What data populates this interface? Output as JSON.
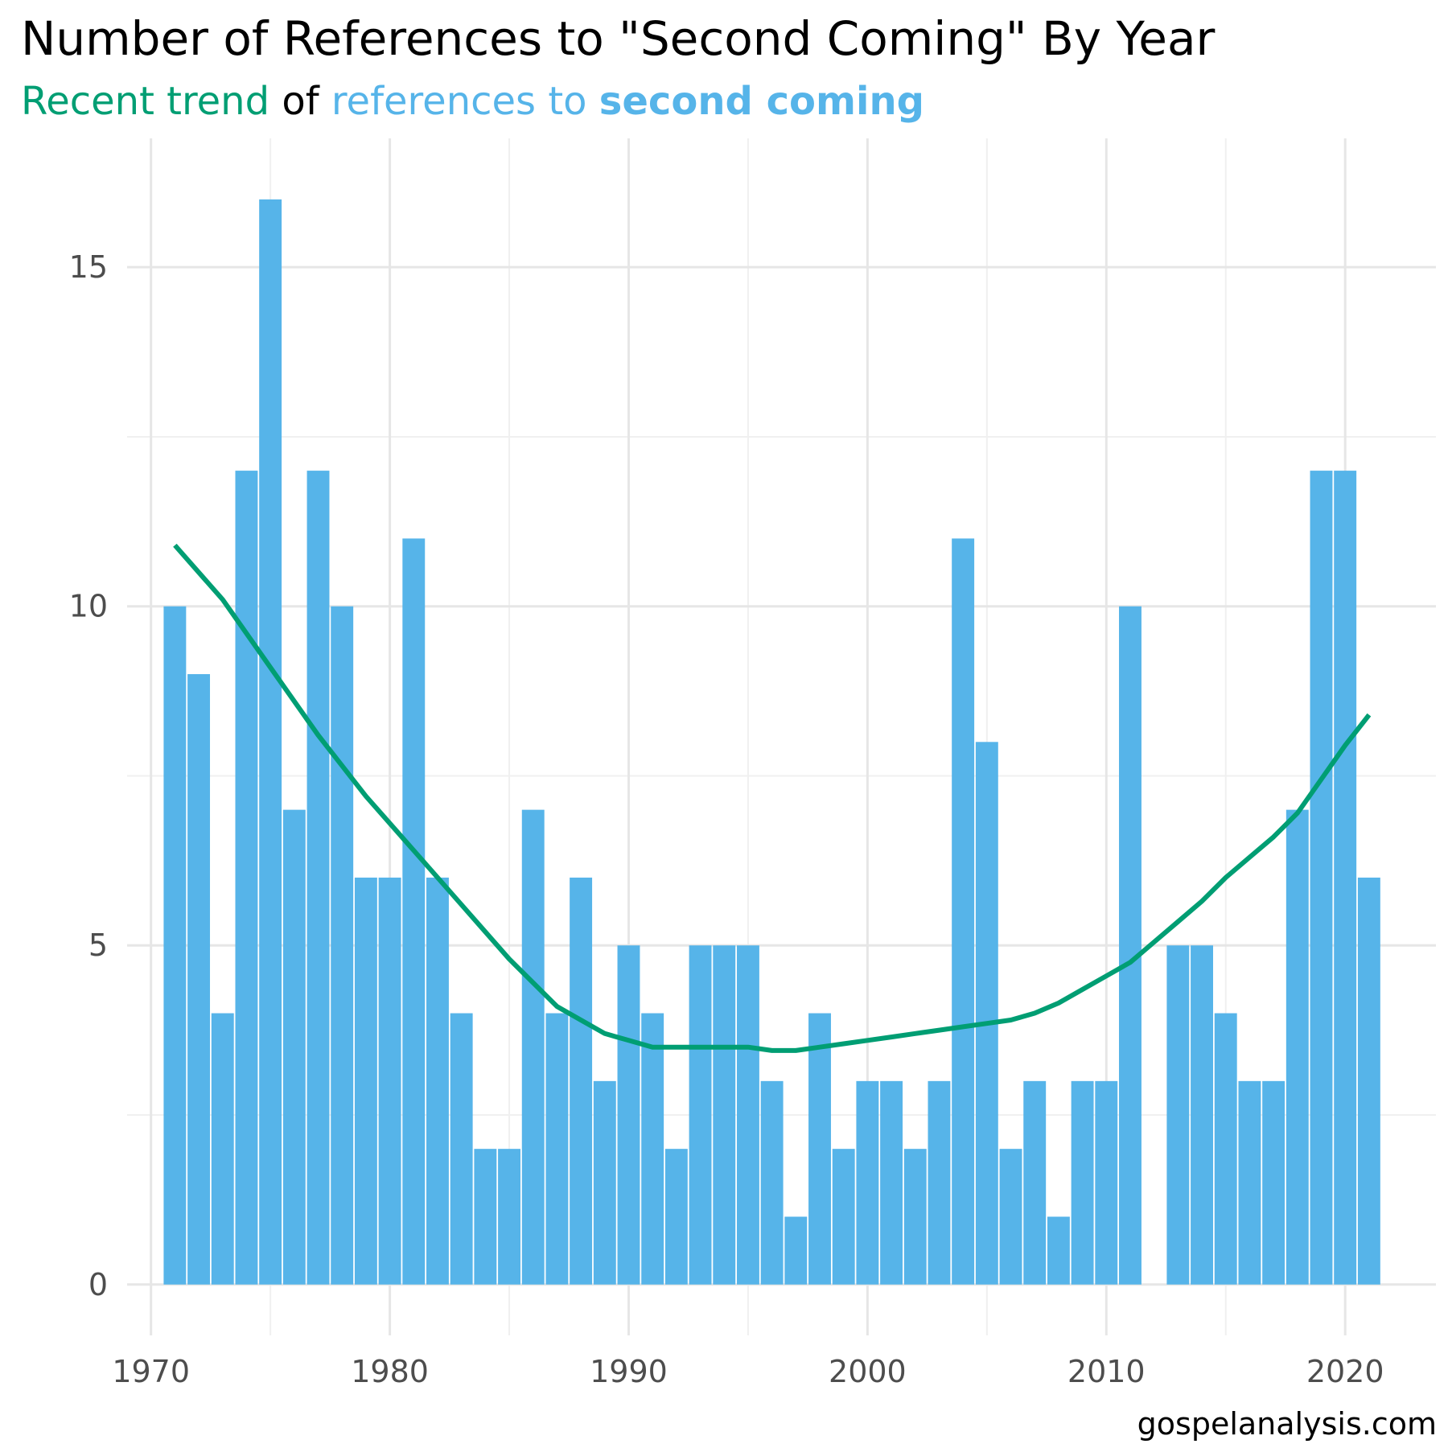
{
  "colors": {
    "bar": "#56B4E9",
    "trend": "#009E73",
    "grid_major": "#e6e6e6",
    "grid_minor": "#f0f0f0",
    "text": "#000000",
    "tick_text": "#4d4d4d"
  },
  "title": "Number of References to \"Second Coming\" By Year",
  "subtitle": {
    "part1": "Recent trend",
    "part2": " of ",
    "part3": "references to ",
    "part4": "second coming"
  },
  "caption": "gospelanalysis.com",
  "chart_data": {
    "type": "bar",
    "title": "Number of References to \"Second Coming\" By Year",
    "xlabel": "",
    "ylabel": "",
    "xlim": [
      1969,
      2023.8
    ],
    "ylim": [
      -0.75,
      16.9
    ],
    "x_ticks": [
      1970,
      1980,
      1990,
      2000,
      2010,
      2020
    ],
    "y_ticks": [
      0,
      5,
      10,
      15
    ],
    "grid": true,
    "legend": "none",
    "series": [
      {
        "type": "bar",
        "x": [
          1971,
          1972,
          1973,
          1974,
          1975,
          1976,
          1977,
          1978,
          1979,
          1980,
          1981,
          1982,
          1983,
          1984,
          1985,
          1986,
          1987,
          1988,
          1989,
          1990,
          1991,
          1992,
          1993,
          1994,
          1995,
          1996,
          1997,
          1998,
          1999,
          2000,
          2001,
          2002,
          2003,
          2004,
          2005,
          2006,
          2007,
          2008,
          2009,
          2010,
          2011,
          2012,
          2013,
          2014,
          2015,
          2016,
          2017,
          2018,
          2019,
          2020,
          2021
        ],
        "values": [
          10,
          9,
          4,
          12,
          16,
          7,
          12,
          10,
          6,
          6,
          11,
          6,
          4,
          2,
          2,
          7,
          4,
          6,
          3,
          5,
          4,
          2,
          5,
          5,
          5,
          3,
          1,
          4,
          2,
          3,
          3,
          2,
          3,
          11,
          8,
          2,
          3,
          1,
          3,
          3,
          10,
          0,
          5,
          5,
          4,
          3,
          3,
          7,
          12,
          12,
          6
        ]
      },
      {
        "type": "line",
        "x": [
          1971,
          1973,
          1975,
          1977,
          1979,
          1981,
          1983,
          1985,
          1987,
          1988,
          1989,
          1990,
          1991,
          1992,
          1993,
          1994,
          1995,
          1996,
          1997,
          1998,
          1999,
          2000,
          2001,
          2002,
          2003,
          2004,
          2005,
          2006,
          2007,
          2008,
          2009,
          2010,
          2011,
          2012,
          2013,
          2014,
          2015,
          2016,
          2017,
          2018,
          2019,
          2020,
          2021
        ],
        "values": [
          10.9,
          10.1,
          9.1,
          8.1,
          7.2,
          6.4,
          5.6,
          4.8,
          4.1,
          3.9,
          3.7,
          3.6,
          3.5,
          3.5,
          3.5,
          3.5,
          3.5,
          3.45,
          3.45,
          3.5,
          3.55,
          3.6,
          3.65,
          3.7,
          3.75,
          3.8,
          3.85,
          3.9,
          4.0,
          4.15,
          4.35,
          4.55,
          4.75,
          5.05,
          5.35,
          5.65,
          6.0,
          6.3,
          6.6,
          6.95,
          7.45,
          7.95,
          8.4
        ]
      }
    ]
  }
}
